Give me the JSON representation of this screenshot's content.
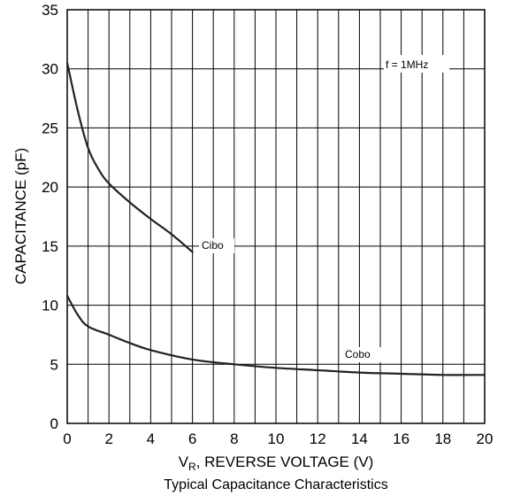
{
  "chart_data": {
    "type": "line",
    "title": "Typical Capacitance Characteristics",
    "xlabel_main": "V",
    "xlabel_sub": "R",
    "xlabel_rest": ", REVERSE VOLTAGE (V)",
    "ylabel": "CAPACITANCE (pF)",
    "xlim": [
      0,
      20
    ],
    "ylim": [
      0,
      35
    ],
    "x_ticks": [
      0,
      2,
      4,
      6,
      8,
      10,
      12,
      14,
      16,
      18,
      20
    ],
    "y_ticks": [
      0,
      5,
      10,
      15,
      20,
      25,
      30,
      35
    ],
    "x_minor_step": 1,
    "grid": true,
    "annotation": "f = 1MHz",
    "series": [
      {
        "name": "Cibo",
        "x": [
          0,
          0.5,
          1,
          1.5,
          2,
          3,
          4,
          5,
          6
        ],
        "y": [
          30.5,
          26.5,
          23.3,
          21.5,
          20.3,
          18.7,
          17.3,
          16.0,
          14.5
        ]
      },
      {
        "name": "Cobo",
        "x": [
          0,
          0.5,
          1,
          2,
          3,
          4,
          6,
          8,
          10,
          12,
          14,
          16,
          18,
          20
        ],
        "y": [
          10.8,
          9.2,
          8.2,
          7.5,
          6.8,
          6.2,
          5.4,
          5.0,
          4.7,
          4.5,
          4.3,
          4.2,
          4.1,
          4.1
        ]
      }
    ]
  }
}
